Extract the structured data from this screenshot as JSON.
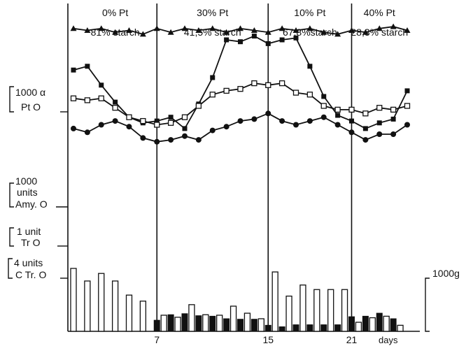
{
  "chart_data": {
    "type": "line",
    "title": "",
    "xlabel": "days",
    "x_ticks": [
      "7",
      "15",
      "21"
    ],
    "x_range": [
      1,
      25
    ],
    "periods": [
      {
        "pt": "0% Pt",
        "starch": "81% starch",
        "start_day": 1,
        "end_day": 7
      },
      {
        "pt": "30% Pt",
        "starch": "41,5% starch",
        "start_day": 7,
        "end_day": 15
      },
      {
        "pt": "10% Pt",
        "starch": "67,8%starch",
        "start_day": 15,
        "end_day": 21
      },
      {
        "pt": "40% Pt",
        "starch": "28,3% starch",
        "start_day": 21,
        "end_day": 25
      }
    ],
    "scale_labels": {
      "alpha_pt": [
        "1000 α",
        "Pt O"
      ],
      "amy": [
        "1000",
        "units",
        "Amy. O"
      ],
      "tr": [
        "1 unit",
        "Tr O"
      ],
      "ctr": [
        "4 units",
        "C Tr. O"
      ],
      "bars_right": "1000g"
    },
    "series": [
      {
        "marker": "triangle",
        "x": [
          1,
          2,
          3,
          4,
          5,
          6,
          7,
          8,
          9,
          10,
          11,
          12,
          13,
          14,
          15,
          16,
          17,
          18,
          19,
          20,
          21,
          22,
          23,
          24,
          25
        ],
        "y": [
          96,
          95,
          96,
          94,
          95,
          93,
          96,
          94,
          96,
          95,
          96,
          94,
          96,
          95,
          94,
          96,
          95,
          96,
          94,
          93,
          95,
          94,
          96,
          97,
          95
        ]
      },
      {
        "marker": "filled-square",
        "x": [
          1,
          2,
          3,
          4,
          5,
          6,
          7,
          8,
          9,
          10,
          11,
          12,
          13,
          14,
          15,
          16,
          17,
          18,
          19,
          20,
          21,
          22,
          23,
          24,
          25
        ],
        "y": [
          74,
          76,
          66,
          57,
          49,
          46,
          47,
          49,
          43,
          56,
          70,
          90,
          89,
          92,
          88,
          90,
          91,
          76,
          60,
          50,
          47,
          43,
          46,
          48,
          63
        ]
      },
      {
        "marker": "open-square",
        "x": [
          1,
          2,
          3,
          4,
          5,
          6,
          7,
          8,
          9,
          10,
          11,
          12,
          13,
          14,
          15,
          16,
          17,
          18,
          19,
          20,
          21,
          22,
          23,
          24,
          25
        ],
        "y": [
          59,
          58,
          59,
          54,
          49,
          47,
          45,
          46,
          49,
          55,
          61,
          63,
          64,
          67,
          66,
          67,
          62,
          61,
          55,
          53,
          53,
          51,
          54,
          53,
          55
        ]
      },
      {
        "marker": "filled-circle",
        "x": [
          1,
          2,
          3,
          4,
          5,
          6,
          7,
          8,
          9,
          10,
          11,
          12,
          13,
          14,
          15,
          16,
          17,
          18,
          19,
          20,
          21,
          22,
          23,
          24,
          25
        ],
        "y": [
          43,
          41,
          45,
          47,
          44,
          38,
          36,
          37,
          39,
          37,
          42,
          44,
          47,
          48,
          51,
          47,
          45,
          47,
          49,
          45,
          41,
          37,
          40,
          40,
          45
        ]
      }
    ],
    "bars": {
      "open": [
        {
          "x": 1,
          "value": 125
        },
        {
          "x": 2,
          "value": 100
        },
        {
          "x": 3,
          "value": 115
        },
        {
          "x": 4,
          "value": 100
        },
        {
          "x": 5,
          "value": 72
        },
        {
          "x": 6,
          "value": 60
        },
        {
          "x": 7.5,
          "value": 32
        },
        {
          "x": 8.5,
          "value": 28
        },
        {
          "x": 9.5,
          "value": 53
        },
        {
          "x": 10.5,
          "value": 33
        },
        {
          "x": 11.5,
          "value": 32
        },
        {
          "x": 12.5,
          "value": 50
        },
        {
          "x": 13.5,
          "value": 36
        },
        {
          "x": 14.5,
          "value": 25
        },
        {
          "x": 15.5,
          "value": 118
        },
        {
          "x": 16.5,
          "value": 70
        },
        {
          "x": 17.5,
          "value": 92
        },
        {
          "x": 18.5,
          "value": 83
        },
        {
          "x": 19.5,
          "value": 83
        },
        {
          "x": 20.5,
          "value": 83
        },
        {
          "x": 21.5,
          "value": 18
        },
        {
          "x": 22.5,
          "value": 27
        },
        {
          "x": 23.5,
          "value": 30
        },
        {
          "x": 24.5,
          "value": 12
        }
      ],
      "filled": [
        {
          "x": 7,
          "value": 22
        },
        {
          "x": 8,
          "value": 33
        },
        {
          "x": 9,
          "value": 35
        },
        {
          "x": 10,
          "value": 31
        },
        {
          "x": 11,
          "value": 30
        },
        {
          "x": 12,
          "value": 25
        },
        {
          "x": 13,
          "value": 24
        },
        {
          "x": 14,
          "value": 24
        },
        {
          "x": 15,
          "value": 12
        },
        {
          "x": 16,
          "value": 9
        },
        {
          "x": 17,
          "value": 13
        },
        {
          "x": 18,
          "value": 13
        },
        {
          "x": 19,
          "value": 13
        },
        {
          "x": 20,
          "value": 13
        },
        {
          "x": 21,
          "value": 29
        },
        {
          "x": 22,
          "value": 30
        },
        {
          "x": 23,
          "value": 36
        },
        {
          "x": 24,
          "value": 25
        }
      ]
    }
  }
}
